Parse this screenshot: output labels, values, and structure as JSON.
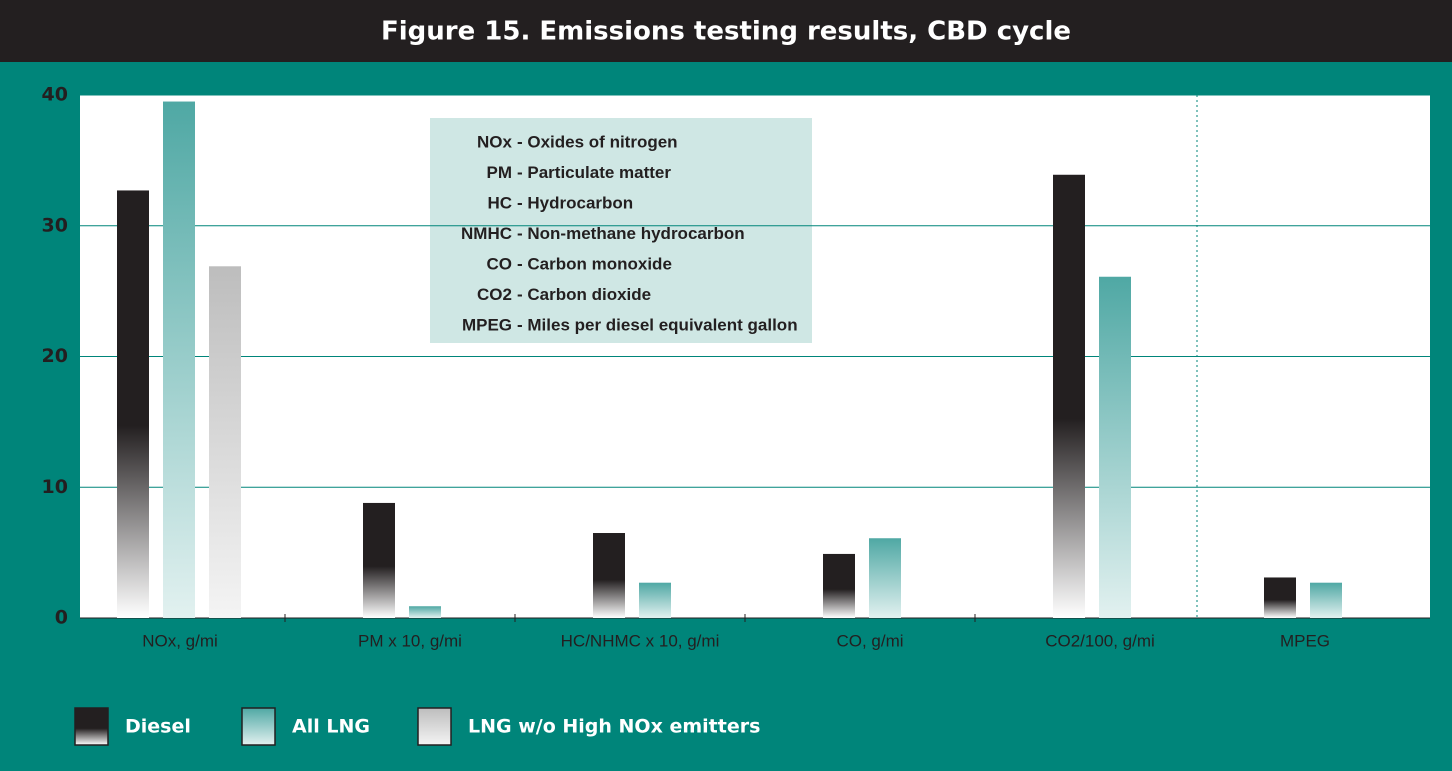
{
  "chart_data": {
    "type": "bar",
    "title": "Figure 15.  Emissions testing results, CBD cycle",
    "categories": [
      "NOx, g/mi",
      "PM x 10, g/mi",
      "HC/NHMC x 10, g/mi",
      "CO, g/mi",
      "CO2/100, g/mi",
      "MPEG"
    ],
    "series": [
      {
        "name": "Diesel",
        "color": "#231f20",
        "values": [
          32.7,
          8.8,
          6.5,
          4.9,
          33.9,
          3.1
        ]
      },
      {
        "name": "All LNG",
        "color": "#4fa8a4",
        "values": [
          39.5,
          0.9,
          2.7,
          6.1,
          26.1,
          2.7
        ]
      },
      {
        "name": "LNG w/o High NOx emitters",
        "color": "#bdbdbd",
        "values": [
          26.9,
          null,
          null,
          null,
          null,
          null
        ]
      }
    ],
    "ylim": [
      0,
      40
    ],
    "yticks": [
      0,
      10,
      20,
      30,
      40
    ],
    "grid": true,
    "definitions": [
      {
        "abbr": "NOx",
        "text": "- Oxides of nitrogen"
      },
      {
        "abbr": "PM",
        "text": "- Particulate matter"
      },
      {
        "abbr": "HC",
        "text": "- Hydrocarbon"
      },
      {
        "abbr": "NMHC",
        "text": "- Non-methane hydrocarbon"
      },
      {
        "abbr": "CO",
        "text": "- Carbon monoxide"
      },
      {
        "abbr": "CO2",
        "text": "- Carbon dioxide"
      },
      {
        "abbr": "MPEG",
        "text": "- Miles per diesel equivalent gallon"
      }
    ]
  }
}
